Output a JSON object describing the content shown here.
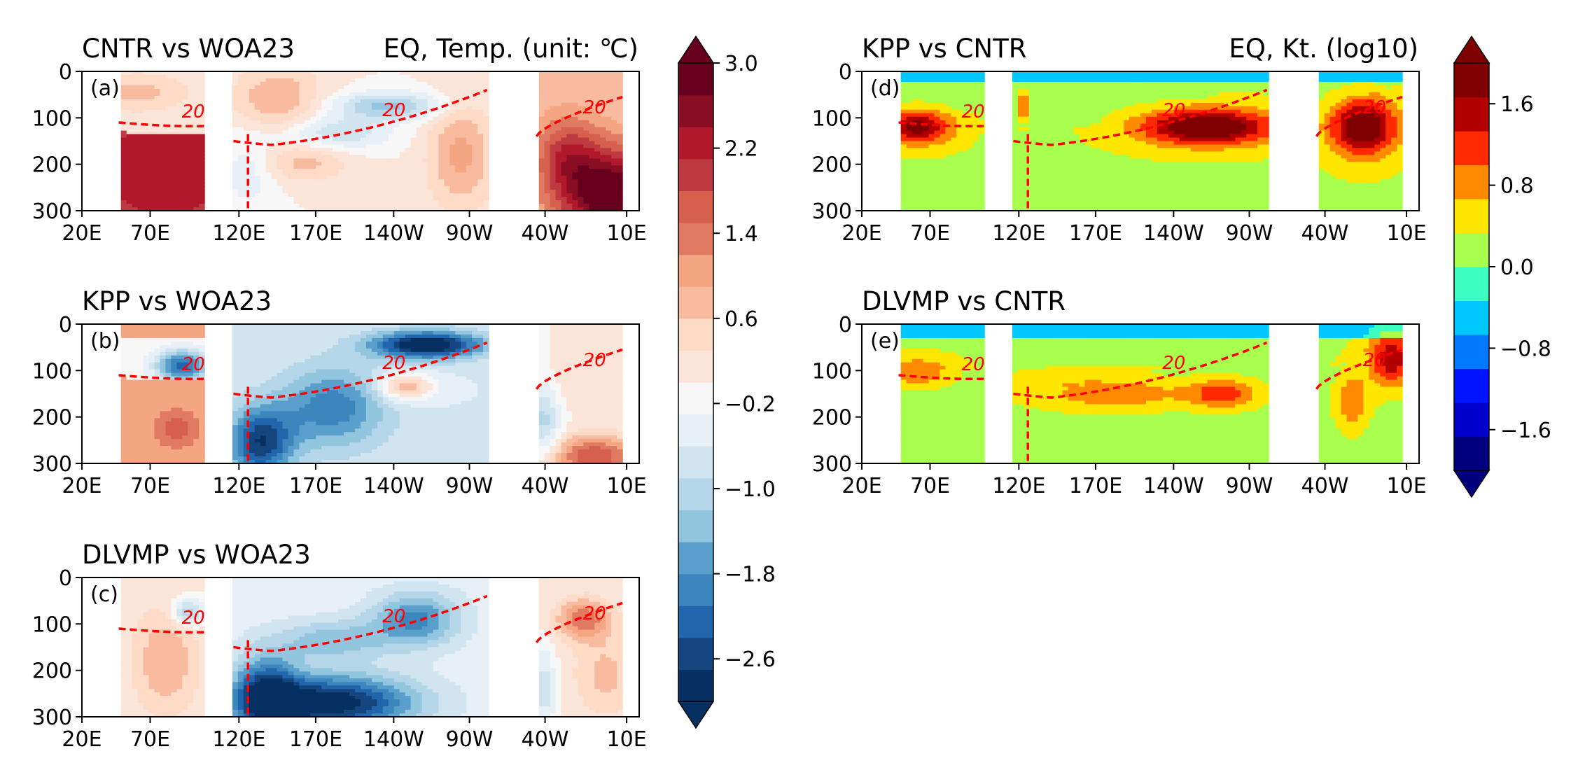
{
  "figure": {
    "panels": [
      {
        "id": "a",
        "label": "(a)",
        "title": "CNTR vs WOA23",
        "title_right": "EQ, Temp. (unit: ℃)",
        "colormap": "rdbu"
      },
      {
        "id": "b",
        "label": "(b)",
        "title": "KPP vs WOA23",
        "title_right": "",
        "colormap": "rdbu"
      },
      {
        "id": "c",
        "label": "(c)",
        "title": "DLVMP vs WOA23",
        "title_right": "",
        "colormap": "rdbu"
      },
      {
        "id": "d",
        "label": "(d)",
        "title": "KPP vs CNTR",
        "title_right": "EQ, Kt. (log10)",
        "colormap": "jet"
      },
      {
        "id": "e",
        "label": "(e)",
        "title": "DLVMP vs CNTR",
        "title_right": "",
        "colormap": "jet"
      }
    ],
    "x_ticks": [
      "20E",
      "70E",
      "120E",
      "170E",
      "140W",
      "90W",
      "40W",
      "10E"
    ],
    "y_ticks": [
      "0",
      "100",
      "200",
      "300"
    ],
    "contour_label": "20",
    "colorbar_left": {
      "ticks": [
        "3.0",
        "2.2",
        "1.4",
        "0.6",
        "−0.2",
        "−1.0",
        "−1.8",
        "−2.6"
      ]
    },
    "colorbar_right": {
      "ticks": [
        "1.6",
        "0.8",
        "0.0",
        "−0.8",
        "−1.6"
      ]
    }
  },
  "chart_data": [
    {
      "type": "heatmap",
      "panel": "a",
      "title": "CNTR vs WOA23",
      "subtitle": "EQ, Temp. (unit: ℃)",
      "x_categories": [
        "20E",
        "70E",
        "120E",
        "170E",
        "140W",
        "90W",
        "40W",
        "10E"
      ],
      "ylim": [
        300,
        0
      ],
      "y_ticks": [
        0,
        100,
        200,
        300
      ],
      "colorbar": {
        "min": -3.0,
        "max": 3.0,
        "ticks": [
          3.0,
          2.2,
          1.4,
          0.6,
          -0.2,
          -1.0,
          -1.8,
          -2.6
        ]
      },
      "isotherm_20C_depth": [
        {
          "x": "20E",
          "y": null
        },
        {
          "x": "70E",
          "y": 110
        },
        {
          "x": "120E",
          "y": 160
        },
        {
          "x": "170E",
          "y": 165
        },
        {
          "x": "140W",
          "y": 120
        },
        {
          "x": "90W",
          "y": 35
        },
        {
          "x": "40W",
          "y": 135
        },
        {
          "x": "10E",
          "y": 55
        }
      ]
    },
    {
      "type": "heatmap",
      "panel": "b",
      "title": "KPP vs WOA23",
      "x_categories": [
        "20E",
        "70E",
        "120E",
        "170E",
        "140W",
        "90W",
        "40W",
        "10E"
      ],
      "ylim": [
        300,
        0
      ],
      "y_ticks": [
        0,
        100,
        200,
        300
      ],
      "colorbar": {
        "min": -3.0,
        "max": 3.0
      },
      "isotherm_20C_depth": [
        {
          "x": "70E",
          "y": 110
        },
        {
          "x": "120E",
          "y": 160
        },
        {
          "x": "170E",
          "y": 165
        },
        {
          "x": "140W",
          "y": 120
        },
        {
          "x": "90W",
          "y": 35
        },
        {
          "x": "40W",
          "y": 135
        },
        {
          "x": "10E",
          "y": 55
        }
      ]
    },
    {
      "type": "heatmap",
      "panel": "c",
      "title": "DLVMP vs WOA23",
      "x_categories": [
        "20E",
        "70E",
        "120E",
        "170E",
        "140W",
        "90W",
        "40W",
        "10E"
      ],
      "ylim": [
        300,
        0
      ],
      "y_ticks": [
        0,
        100,
        200,
        300
      ],
      "colorbar": {
        "min": -3.0,
        "max": 3.0
      },
      "isotherm_20C_depth": [
        {
          "x": "70E",
          "y": 110
        },
        {
          "x": "120E",
          "y": 160
        },
        {
          "x": "170E",
          "y": 165
        },
        {
          "x": "140W",
          "y": 120
        },
        {
          "x": "90W",
          "y": 35
        },
        {
          "x": "40W",
          "y": 135
        },
        {
          "x": "10E",
          "y": 55
        }
      ]
    },
    {
      "type": "heatmap",
      "panel": "d",
      "title": "KPP vs CNTR",
      "subtitle": "EQ, Kt. (log10)",
      "x_categories": [
        "20E",
        "70E",
        "120E",
        "170E",
        "140W",
        "90W",
        "40W",
        "10E"
      ],
      "ylim": [
        300,
        0
      ],
      "y_ticks": [
        0,
        100,
        200,
        300
      ],
      "colorbar": {
        "min": -2.0,
        "max": 2.0,
        "ticks": [
          1.6,
          0.8,
          0.0,
          -0.8,
          -1.6
        ]
      }
    },
    {
      "type": "heatmap",
      "panel": "e",
      "title": "DLVMP vs CNTR",
      "x_categories": [
        "20E",
        "70E",
        "120E",
        "170E",
        "140W",
        "90W",
        "40W",
        "10E"
      ],
      "ylim": [
        300,
        0
      ],
      "y_ticks": [
        0,
        100,
        200,
        300
      ],
      "colorbar": {
        "min": -2.0,
        "max": 2.0
      }
    }
  ]
}
